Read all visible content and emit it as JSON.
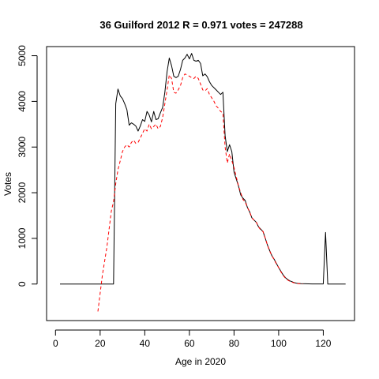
{
  "chart_data": {
    "type": "line",
    "title": "36 Guilford 2012 R = 0.971 votes = 247288",
    "xlabel": "Age in 2020",
    "ylabel": "Votes",
    "xlim": [
      -4,
      134
    ],
    "ylim": [
      -800,
      5200
    ],
    "xticks": [
      0,
      20,
      40,
      60,
      80,
      100,
      120
    ],
    "yticks": [
      0,
      1000,
      2000,
      3000,
      4000,
      5000
    ],
    "grid": false,
    "colors": {
      "series1": "#000000",
      "series2": "#ff0000"
    },
    "series": [
      {
        "style": "solid",
        "points": [
          [
            2,
            0
          ],
          [
            26,
            0
          ],
          [
            27,
            3950
          ],
          [
            28,
            4270
          ],
          [
            29,
            4120
          ],
          [
            30,
            4060
          ],
          [
            31,
            3950
          ],
          [
            32,
            3820
          ],
          [
            33,
            3480
          ],
          [
            34,
            3530
          ],
          [
            35,
            3500
          ],
          [
            36,
            3460
          ],
          [
            37,
            3350
          ],
          [
            38,
            3460
          ],
          [
            39,
            3600
          ],
          [
            40,
            3560
          ],
          [
            41,
            3780
          ],
          [
            42,
            3700
          ],
          [
            43,
            3550
          ],
          [
            44,
            3780
          ],
          [
            45,
            3600
          ],
          [
            46,
            3620
          ],
          [
            47,
            3750
          ],
          [
            48,
            3870
          ],
          [
            49,
            4200
          ],
          [
            50,
            4650
          ],
          [
            51,
            4950
          ],
          [
            52,
            4780
          ],
          [
            53,
            4550
          ],
          [
            54,
            4520
          ],
          [
            55,
            4550
          ],
          [
            56,
            4700
          ],
          [
            57,
            4900
          ],
          [
            58,
            4950
          ],
          [
            59,
            5030
          ],
          [
            60,
            4930
          ],
          [
            61,
            5050
          ],
          [
            62,
            4900
          ],
          [
            63,
            4880
          ],
          [
            64,
            4900
          ],
          [
            65,
            4830
          ],
          [
            66,
            4560
          ],
          [
            67,
            4600
          ],
          [
            68,
            4540
          ],
          [
            69,
            4430
          ],
          [
            70,
            4350
          ],
          [
            71,
            4300
          ],
          [
            72,
            4250
          ],
          [
            73,
            4200
          ],
          [
            74,
            4150
          ],
          [
            75,
            4200
          ],
          [
            76,
            3250
          ],
          [
            77,
            2900
          ],
          [
            78,
            3050
          ],
          [
            79,
            2900
          ],
          [
            80,
            2450
          ],
          [
            81,
            2300
          ],
          [
            82,
            2150
          ],
          [
            83,
            1950
          ],
          [
            84,
            1880
          ],
          [
            85,
            1830
          ],
          [
            86,
            1680
          ],
          [
            87,
            1580
          ],
          [
            88,
            1450
          ],
          [
            89,
            1400
          ],
          [
            90,
            1350
          ],
          [
            91,
            1250
          ],
          [
            92,
            1200
          ],
          [
            93,
            1150
          ],
          [
            94,
            1000
          ],
          [
            95,
            850
          ],
          [
            96,
            730
          ],
          [
            97,
            620
          ],
          [
            98,
            540
          ],
          [
            99,
            450
          ],
          [
            100,
            360
          ],
          [
            101,
            280
          ],
          [
            102,
            200
          ],
          [
            103,
            140
          ],
          [
            104,
            100
          ],
          [
            105,
            70
          ],
          [
            106,
            50
          ],
          [
            107,
            30
          ],
          [
            108,
            20
          ],
          [
            109,
            12
          ],
          [
            110,
            8
          ],
          [
            112,
            5
          ],
          [
            115,
            3
          ],
          [
            118,
            2
          ],
          [
            120,
            2
          ],
          [
            121,
            1130
          ],
          [
            122,
            0
          ],
          [
            130,
            0
          ]
        ]
      },
      {
        "style": "dashed",
        "points": [
          [
            19,
            -600
          ],
          [
            21,
            200
          ],
          [
            23,
            800
          ],
          [
            25,
            1600
          ],
          [
            26,
            1800
          ],
          [
            27,
            2200
          ],
          [
            28,
            2500
          ],
          [
            29,
            2700
          ],
          [
            30,
            2900
          ],
          [
            31,
            3000
          ],
          [
            32,
            3050
          ],
          [
            33,
            3000
          ],
          [
            34,
            3100
          ],
          [
            35,
            3150
          ],
          [
            36,
            3080
          ],
          [
            37,
            3100
          ],
          [
            38,
            3200
          ],
          [
            39,
            3300
          ],
          [
            40,
            3400
          ],
          [
            41,
            3350
          ],
          [
            42,
            3500
          ],
          [
            43,
            3400
          ],
          [
            44,
            3450
          ],
          [
            45,
            3500
          ],
          [
            46,
            3400
          ],
          [
            47,
            3450
          ],
          [
            48,
            3650
          ],
          [
            49,
            3950
          ],
          [
            50,
            4250
          ],
          [
            51,
            4580
          ],
          [
            52,
            4500
          ],
          [
            53,
            4200
          ],
          [
            54,
            4180
          ],
          [
            55,
            4250
          ],
          [
            56,
            4350
          ],
          [
            57,
            4520
          ],
          [
            58,
            4600
          ],
          [
            59,
            4580
          ],
          [
            60,
            4550
          ],
          [
            61,
            4520
          ],
          [
            62,
            4500
          ],
          [
            63,
            4550
          ],
          [
            64,
            4500
          ],
          [
            65,
            4380
          ],
          [
            66,
            4250
          ],
          [
            67,
            4230
          ],
          [
            68,
            4280
          ],
          [
            69,
            4150
          ],
          [
            70,
            4080
          ],
          [
            71,
            4000
          ],
          [
            72,
            3900
          ],
          [
            73,
            3850
          ],
          [
            74,
            3780
          ],
          [
            75,
            3750
          ],
          [
            76,
            3000
          ],
          [
            77,
            2650
          ],
          [
            78,
            2850
          ],
          [
            79,
            2700
          ],
          [
            80,
            2550
          ],
          [
            81,
            2350
          ],
          [
            82,
            2150
          ],
          [
            83,
            2000
          ],
          [
            84,
            1850
          ],
          [
            85,
            1800
          ],
          [
            86,
            1680
          ],
          [
            87,
            1580
          ],
          [
            88,
            1450
          ],
          [
            89,
            1400
          ],
          [
            90,
            1350
          ],
          [
            91,
            1250
          ],
          [
            92,
            1180
          ],
          [
            93,
            1150
          ],
          [
            94,
            1000
          ],
          [
            95,
            850
          ],
          [
            96,
            720
          ],
          [
            97,
            620
          ],
          [
            98,
            530
          ],
          [
            99,
            440
          ],
          [
            100,
            360
          ],
          [
            101,
            270
          ],
          [
            102,
            190
          ],
          [
            103,
            130
          ],
          [
            104,
            90
          ],
          [
            105,
            60
          ],
          [
            106,
            40
          ],
          [
            107,
            25
          ],
          [
            108,
            15
          ],
          [
            109,
            8
          ],
          [
            110,
            5
          ],
          [
            111,
            2
          ]
        ]
      }
    ]
  }
}
